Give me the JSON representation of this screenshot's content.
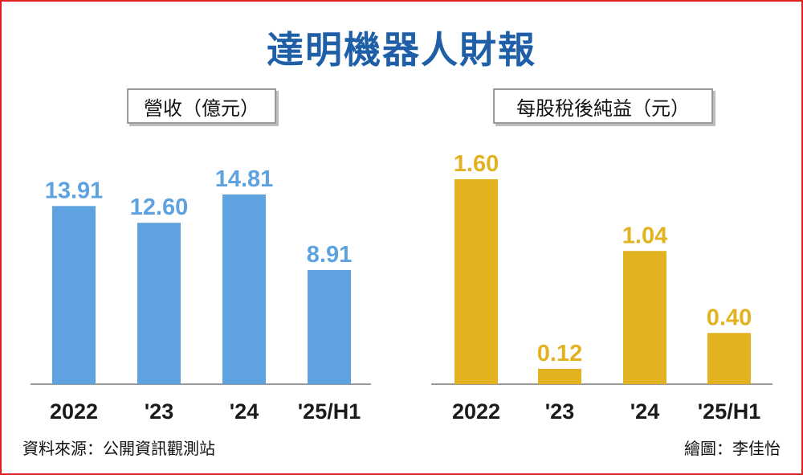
{
  "title": "達明機器人財報",
  "source": "資料來源：公開資訊觀測站",
  "credit": "繪圖：李佳怡",
  "colors": {
    "revenue": "#5fa2e0",
    "eps": "#e3b220",
    "title": "#1f5fa8",
    "frame": "#e02020"
  },
  "chart_data": [
    {
      "type": "bar",
      "title": "營收（億元）",
      "categories": [
        "2022",
        "'23",
        "'24",
        "'25/H1"
      ],
      "values": [
        13.91,
        12.6,
        14.81,
        8.91
      ],
      "value_labels": [
        "13.91",
        "12.60",
        "14.81",
        "8.91"
      ],
      "ylim": [
        0,
        14.81
      ],
      "grid": false
    },
    {
      "type": "bar",
      "title": "每股稅後純益（元）",
      "categories": [
        "2022",
        "'23",
        "'24",
        "'25/H1"
      ],
      "values": [
        1.6,
        0.12,
        1.04,
        0.4
      ],
      "value_labels": [
        "1.60",
        "0.12",
        "1.04",
        "0.40"
      ],
      "ylim": [
        0,
        1.6
      ],
      "grid": false
    }
  ]
}
